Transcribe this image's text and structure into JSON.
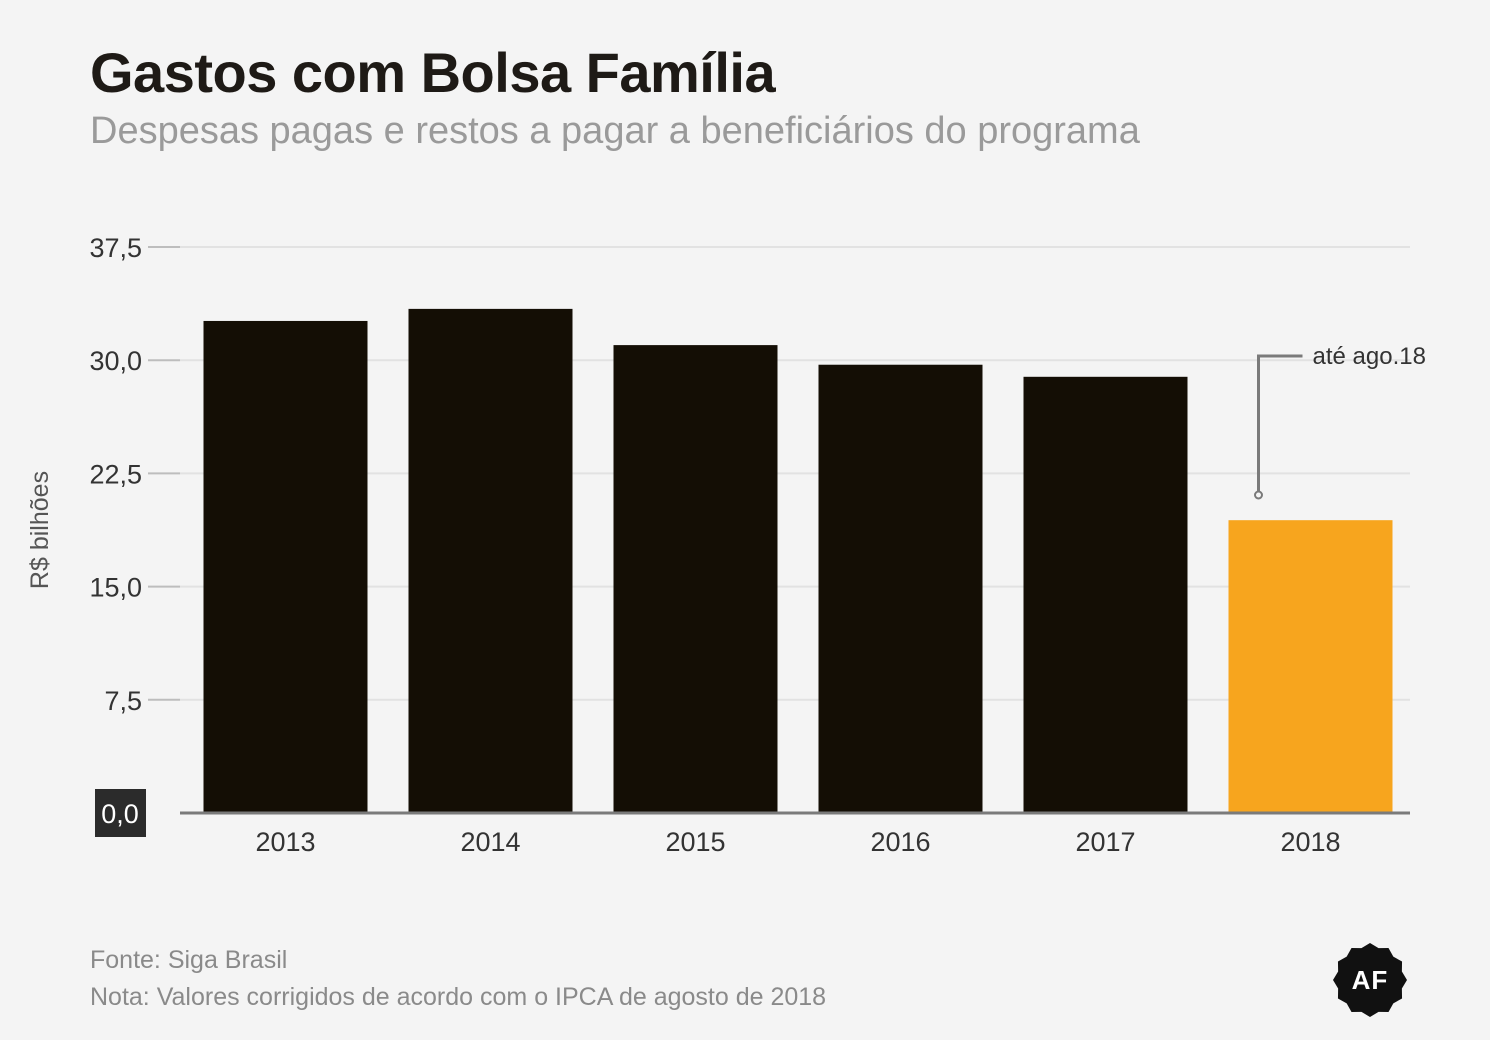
{
  "header": {
    "title": "Gastos com Bolsa Família",
    "subtitle": "Despesas pagas e restos a pagar a beneficiários do programa"
  },
  "chart_data": {
    "type": "bar",
    "categories": [
      "2013",
      "2014",
      "2015",
      "2016",
      "2017",
      "2018"
    ],
    "values": [
      32.6,
      33.4,
      31.0,
      29.7,
      28.9,
      19.4
    ],
    "ylabel": "R$ bilhões",
    "ylim": [
      0,
      37.5
    ],
    "yticks": [
      "0,0",
      "7,5",
      "15,0",
      "22,5",
      "30,0",
      "37,5"
    ],
    "grid": true,
    "bar_color": "#140e05",
    "highlight_color": "#f7a51e",
    "highlight_index": 5,
    "annotation": {
      "text": "até ago.18",
      "category": "2018"
    }
  },
  "footer": {
    "source": "Fonte: Siga Brasil",
    "note": "Nota: Valores corrigidos de acordo com o IPCA de agosto de 2018"
  },
  "logo": {
    "text": "AF",
    "icon": "publisher-logo-badge"
  }
}
